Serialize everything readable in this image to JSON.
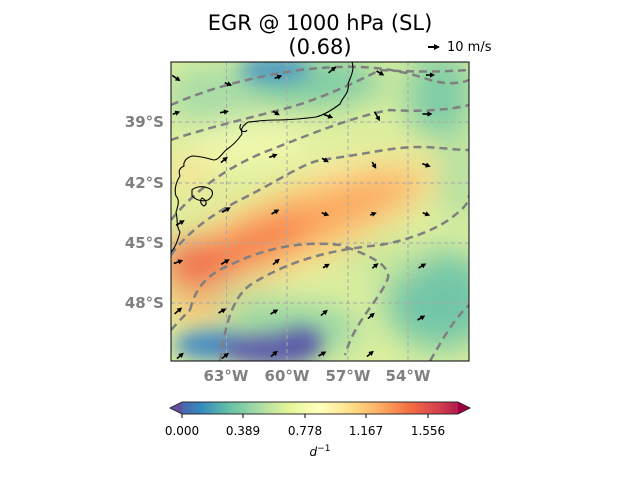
{
  "title": {
    "line1": "EGR @ 1000 hPa (SL)",
    "line2": "(0.68)"
  },
  "reference_vector": {
    "label": "10 m/s",
    "magnitude_ms": 10
  },
  "map": {
    "lat_labels": [
      "39°S",
      "42°S",
      "45°S",
      "48°S"
    ],
    "lon_labels": [
      "63°W",
      "60°W",
      "57°W",
      "54°W"
    ],
    "lon_range": [
      -65.7,
      -51.0
    ],
    "lat_range": [
      -51.0,
      -36.9
    ],
    "gridlines": true,
    "background_field": "EGR"
  },
  "colorbar": {
    "ticks": [
      "0.000",
      "0.389",
      "0.778",
      "1.167",
      "1.556"
    ],
    "range": [
      0.0,
      1.75
    ],
    "unit_base": "d",
    "unit_exp": "−1",
    "colormap": [
      "#5e4fa2",
      "#3288bd",
      "#66c2a5",
      "#abdda4",
      "#e6f598",
      "#ffffbf",
      "#fee08b",
      "#fdae61",
      "#f46d43",
      "#d53e4f",
      "#9e0142"
    ],
    "extend": "both"
  }
}
